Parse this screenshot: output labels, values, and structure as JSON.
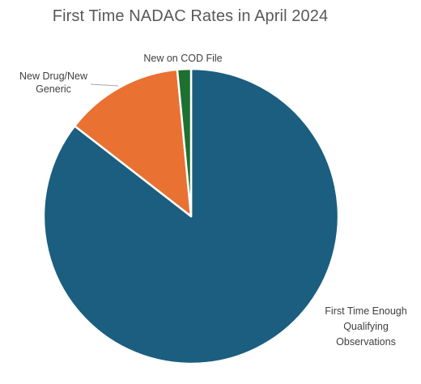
{
  "chart_data": {
    "type": "pie",
    "title": "First Time NADAC Rates in April 2024",
    "start_angle_deg": 0,
    "direction": "clockwise",
    "slices": [
      {
        "label": "First Time Enough Qualifying Observations",
        "value": 85.5,
        "color": "#1B5E7F"
      },
      {
        "label": "New Drug/New Generic",
        "value": 13.0,
        "color": "#E97132"
      },
      {
        "label": "New on COD File",
        "value": 1.5,
        "color": "#1E7031"
      }
    ]
  }
}
